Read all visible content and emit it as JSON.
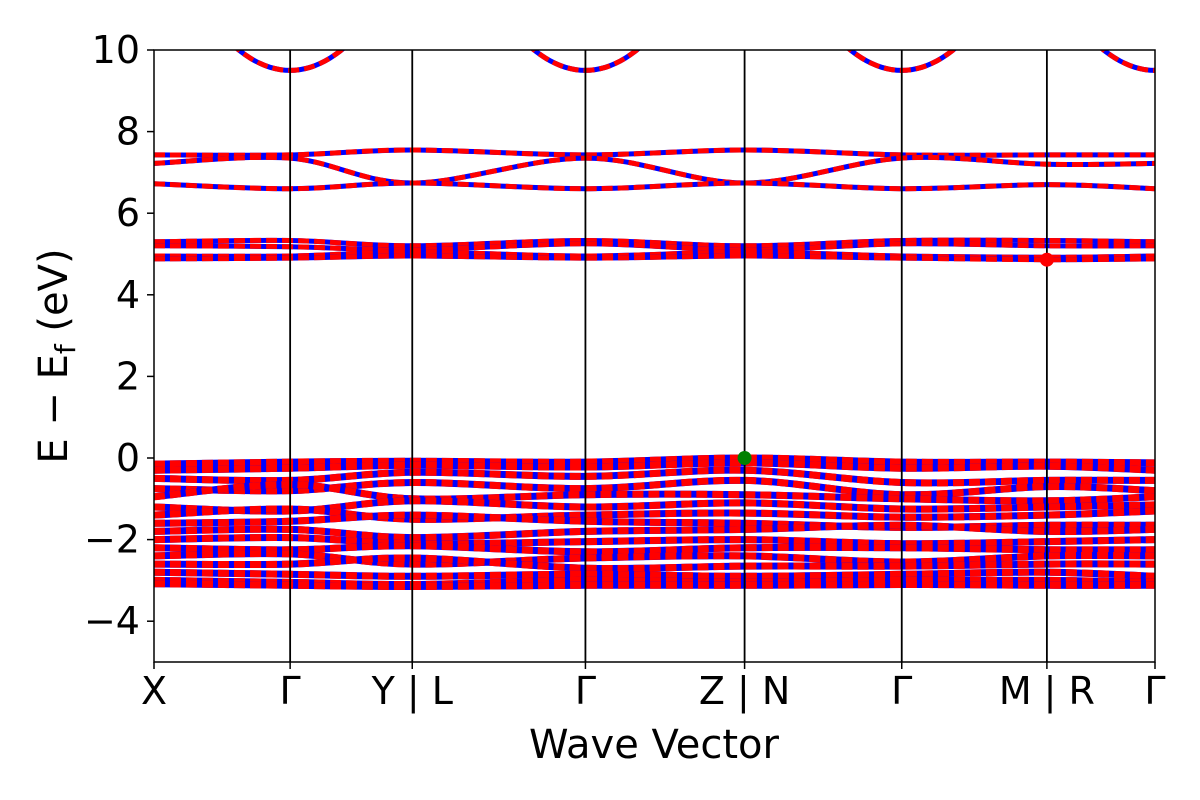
{
  "chart_data": {
    "type": "line",
    "xlabel": "Wave Vector",
    "ylabel": {
      "main": "E − E",
      "subscript": "f",
      "unit": " (eV)"
    },
    "ylim": [
      -5,
      10
    ],
    "yticks": [
      {
        "value": 10,
        "label": "10"
      },
      {
        "value": 8,
        "label": "8"
      },
      {
        "value": 6,
        "label": "6"
      },
      {
        "value": 4,
        "label": "4"
      },
      {
        "value": 2,
        "label": "2"
      },
      {
        "value": 0,
        "label": "0"
      },
      {
        "value": -2,
        "label": "−2"
      },
      {
        "value": -4,
        "label": "−4"
      }
    ],
    "kpath": [
      {
        "label": "X",
        "k": 0.0
      },
      {
        "label": "Γ",
        "k": 0.136
      },
      {
        "label": "Y | L",
        "k": 0.258
      },
      {
        "label": "Γ",
        "k": 0.431
      },
      {
        "label": "Z | N",
        "k": 0.59
      },
      {
        "label": "Γ",
        "k": 0.747
      },
      {
        "label": "M | R",
        "k": 0.892
      },
      {
        "label": "Γ",
        "k": 1.0
      }
    ],
    "grid": false,
    "legend": "none",
    "series_colors": {
      "spin_up": "#0000ff",
      "spin_down": "#ff0000"
    },
    "markers": [
      {
        "name": "vbm",
        "k": 0.59,
        "energy": 0.0,
        "color": "#008000"
      },
      {
        "name": "cbm",
        "k": 0.892,
        "energy": 4.86,
        "color": "#ff0000"
      }
    ],
    "conduction_parabola": {
      "min_energy": 9.5
    },
    "bands_upper": [
      {
        "name": "band-7.44",
        "points": [
          [
            0.0,
            7.43
          ],
          [
            0.136,
            7.43
          ],
          [
            0.258,
            7.55
          ],
          [
            0.431,
            7.43
          ],
          [
            0.59,
            7.55
          ],
          [
            0.747,
            7.43
          ],
          [
            0.892,
            7.43
          ],
          [
            1.0,
            7.43
          ]
        ]
      },
      {
        "name": "band-7.22",
        "points": [
          [
            0.0,
            7.22
          ],
          [
            0.136,
            7.35
          ],
          [
            0.258,
            6.74
          ],
          [
            0.431,
            7.35
          ],
          [
            0.59,
            6.74
          ],
          [
            0.747,
            7.35
          ],
          [
            0.892,
            7.2
          ],
          [
            1.0,
            7.22
          ]
        ]
      },
      {
        "name": "band-6.7",
        "points": [
          [
            0.0,
            6.72
          ],
          [
            0.136,
            6.6
          ],
          [
            0.258,
            6.74
          ],
          [
            0.431,
            6.6
          ],
          [
            0.59,
            6.74
          ],
          [
            0.747,
            6.6
          ],
          [
            0.892,
            6.7
          ],
          [
            1.0,
            6.6
          ]
        ]
      },
      {
        "name": "band-5.3",
        "points": [
          [
            0.0,
            5.3
          ],
          [
            0.136,
            5.33
          ],
          [
            0.258,
            5.2
          ],
          [
            0.431,
            5.33
          ],
          [
            0.59,
            5.2
          ],
          [
            0.747,
            5.33
          ],
          [
            0.892,
            5.33
          ],
          [
            1.0,
            5.3
          ]
        ]
      },
      {
        "name": "band-5.2",
        "points": [
          [
            0.0,
            5.2
          ],
          [
            0.136,
            5.18
          ],
          [
            0.258,
            5.1
          ],
          [
            0.431,
            5.25
          ],
          [
            0.59,
            5.1
          ],
          [
            0.747,
            5.25
          ],
          [
            0.892,
            5.2
          ],
          [
            1.0,
            5.2
          ]
        ]
      },
      {
        "name": "band-4.95",
        "points": [
          [
            0.0,
            4.95
          ],
          [
            0.136,
            4.95
          ],
          [
            0.258,
            5.05
          ],
          [
            0.431,
            4.95
          ],
          [
            0.59,
            5.05
          ],
          [
            0.747,
            4.95
          ],
          [
            0.892,
            4.92
          ],
          [
            1.0,
            4.95
          ]
        ]
      },
      {
        "name": "band-4.88",
        "points": [
          [
            0.0,
            4.88
          ],
          [
            0.136,
            4.9
          ],
          [
            0.258,
            4.95
          ],
          [
            0.431,
            4.9
          ],
          [
            0.59,
            4.95
          ],
          [
            0.747,
            4.9
          ],
          [
            0.892,
            4.86
          ],
          [
            1.0,
            4.88
          ]
        ]
      }
    ],
    "bands_valence": [
      {
        "name": "vb-1",
        "points": [
          [
            0.0,
            -0.15
          ],
          [
            0.136,
            -0.1
          ],
          [
            0.258,
            -0.08
          ],
          [
            0.431,
            -0.1
          ],
          [
            0.59,
            0.0
          ],
          [
            0.747,
            -0.1
          ],
          [
            0.892,
            -0.1
          ],
          [
            1.0,
            -0.12
          ]
        ]
      },
      {
        "name": "vb-2",
        "points": [
          [
            0.0,
            -0.3
          ],
          [
            0.136,
            -0.25
          ],
          [
            0.258,
            -0.18
          ],
          [
            0.431,
            -0.22
          ],
          [
            0.59,
            -0.12
          ],
          [
            0.747,
            -0.25
          ],
          [
            0.892,
            -0.2
          ],
          [
            1.0,
            -0.3
          ]
        ]
      },
      {
        "name": "vb-3",
        "points": [
          [
            0.0,
            -0.5
          ],
          [
            0.136,
            -0.55
          ],
          [
            0.258,
            -0.35
          ],
          [
            0.431,
            -0.45
          ],
          [
            0.59,
            -0.3
          ],
          [
            0.747,
            -0.6
          ],
          [
            0.892,
            -0.55
          ],
          [
            1.0,
            -0.55
          ]
        ]
      },
      {
        "name": "vb-4",
        "points": [
          [
            0.0,
            -0.75
          ],
          [
            0.136,
            -0.8
          ],
          [
            0.258,
            -0.6
          ],
          [
            0.431,
            -0.75
          ],
          [
            0.59,
            -0.55
          ],
          [
            0.747,
            -0.9
          ],
          [
            0.892,
            -0.7
          ],
          [
            1.0,
            -0.8
          ]
        ]
      },
      {
        "name": "vb-5",
        "points": [
          [
            0.0,
            -0.95
          ],
          [
            0.136,
            -0.65
          ],
          [
            0.258,
            -1.0
          ],
          [
            0.431,
            -0.9
          ],
          [
            0.59,
            -0.9
          ],
          [
            0.747,
            -1.0
          ],
          [
            0.892,
            -1.05
          ],
          [
            1.0,
            -0.95
          ]
        ]
      },
      {
        "name": "vb-6",
        "points": [
          [
            0.0,
            -1.2
          ],
          [
            0.136,
            -1.3
          ],
          [
            0.258,
            -1.05
          ],
          [
            0.431,
            -1.2
          ],
          [
            0.59,
            -1.1
          ],
          [
            0.747,
            -1.25
          ],
          [
            0.892,
            -1.2
          ],
          [
            1.0,
            -1.15
          ]
        ]
      },
      {
        "name": "vb-7",
        "points": [
          [
            0.0,
            -1.4
          ],
          [
            0.136,
            -1.25
          ],
          [
            0.258,
            -1.5
          ],
          [
            0.431,
            -1.4
          ],
          [
            0.59,
            -1.35
          ],
          [
            0.747,
            -1.45
          ],
          [
            0.892,
            -1.4
          ],
          [
            1.0,
            -1.3
          ]
        ]
      },
      {
        "name": "vb-8",
        "points": [
          [
            0.0,
            -1.6
          ],
          [
            0.136,
            -1.55
          ],
          [
            0.258,
            -1.4
          ],
          [
            0.431,
            -1.55
          ],
          [
            0.59,
            -1.6
          ],
          [
            0.747,
            -1.7
          ],
          [
            0.892,
            -1.65
          ],
          [
            1.0,
            -1.65
          ]
        ]
      },
      {
        "name": "vb-9",
        "points": [
          [
            0.0,
            -1.8
          ],
          [
            0.136,
            -1.75
          ],
          [
            0.258,
            -1.95
          ],
          [
            0.431,
            -1.8
          ],
          [
            0.59,
            -1.75
          ],
          [
            0.747,
            -1.65
          ],
          [
            0.892,
            -1.8
          ],
          [
            1.0,
            -1.75
          ]
        ]
      },
      {
        "name": "vb-10",
        "points": [
          [
            0.0,
            -2.0
          ],
          [
            0.136,
            -1.95
          ],
          [
            0.258,
            -2.1
          ],
          [
            0.431,
            -2.05
          ],
          [
            0.59,
            -2.0
          ],
          [
            0.747,
            -2.1
          ],
          [
            0.892,
            -2.05
          ],
          [
            1.0,
            -2.0
          ]
        ]
      },
      {
        "name": "vb-11",
        "points": [
          [
            0.0,
            -2.2
          ],
          [
            0.136,
            -2.25
          ],
          [
            0.258,
            -2.15
          ],
          [
            0.431,
            -2.3
          ],
          [
            0.59,
            -2.2
          ],
          [
            0.747,
            -2.2
          ],
          [
            0.892,
            -2.25
          ],
          [
            1.0,
            -2.25
          ]
        ]
      },
      {
        "name": "vb-12",
        "points": [
          [
            0.0,
            -2.4
          ],
          [
            0.136,
            -2.35
          ],
          [
            0.258,
            -2.6
          ],
          [
            0.431,
            -2.45
          ],
          [
            0.59,
            -2.4
          ],
          [
            0.747,
            -2.55
          ],
          [
            0.892,
            -2.4
          ],
          [
            1.0,
            -2.4
          ]
        ]
      },
      {
        "name": "vb-13",
        "points": [
          [
            0.0,
            -2.6
          ],
          [
            0.136,
            -2.6
          ],
          [
            0.258,
            -2.45
          ],
          [
            0.431,
            -2.7
          ],
          [
            0.59,
            -2.65
          ],
          [
            0.747,
            -2.65
          ],
          [
            0.892,
            -2.6
          ],
          [
            1.0,
            -2.6
          ]
        ]
      },
      {
        "name": "vb-14",
        "points": [
          [
            0.0,
            -2.8
          ],
          [
            0.136,
            -2.85
          ],
          [
            0.258,
            -2.9
          ],
          [
            0.431,
            -2.85
          ],
          [
            0.59,
            -2.9
          ],
          [
            0.747,
            -2.85
          ],
          [
            0.892,
            -2.8
          ],
          [
            1.0,
            -2.9
          ]
        ]
      },
      {
        "name": "vb-15",
        "points": [
          [
            0.0,
            -3.0
          ],
          [
            0.136,
            -3.05
          ],
          [
            0.258,
            -3.1
          ],
          [
            0.431,
            -3.0
          ],
          [
            0.59,
            -3.05
          ],
          [
            0.747,
            -3.0
          ],
          [
            0.892,
            -3.0
          ],
          [
            1.0,
            -3.05
          ]
        ]
      },
      {
        "name": "vb-16",
        "points": [
          [
            0.0,
            -3.08
          ],
          [
            0.136,
            -3.12
          ],
          [
            0.258,
            -3.15
          ],
          [
            0.431,
            -3.12
          ],
          [
            0.59,
            -3.12
          ],
          [
            0.747,
            -3.1
          ],
          [
            0.892,
            -3.12
          ],
          [
            1.0,
            -3.12
          ]
        ]
      }
    ]
  }
}
